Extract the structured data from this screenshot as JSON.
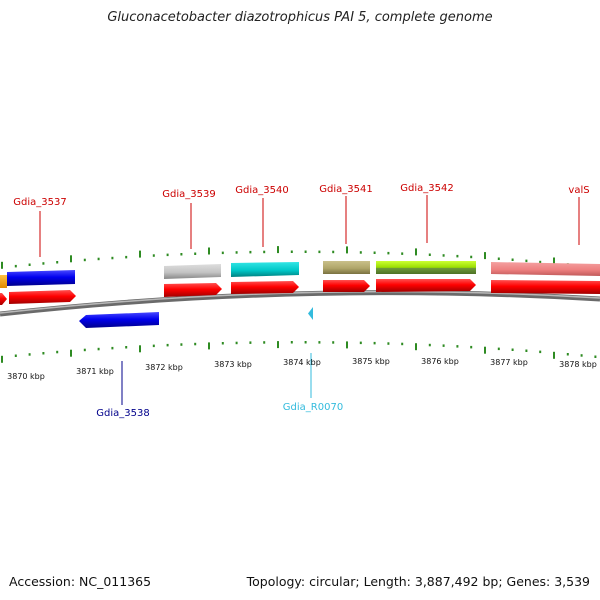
{
  "title": "Gluconacetobacter diazotrophicus PAI 5, complete genome",
  "footer": {
    "accession": "Accession: NC_011365",
    "summary": "Topology: circular; Length: 3,887,492 bp; Genes: 3,539"
  },
  "scale": {
    "ticks": [
      "3870 kbp",
      "3871 kbp",
      "3872 kbp",
      "3873 kbp",
      "3874 kbp",
      "3875 kbp",
      "3876 kbp",
      "3877 kbp",
      "3878 kbp"
    ]
  },
  "features": [
    {
      "label": "Gdia_3537",
      "color": "#cc0000"
    },
    {
      "label": "Gdia_3538",
      "color": "#00008b"
    },
    {
      "label": "Gdia_3539",
      "color": "#cc0000"
    },
    {
      "label": "Gdia_3540",
      "color": "#cc0000"
    },
    {
      "label": "Gdia_R0070",
      "color": "#33bbdd"
    },
    {
      "label": "Gdia_3541",
      "color": "#cc0000"
    },
    {
      "label": "Gdia_3542",
      "color": "#cc0000"
    },
    {
      "label": "valS",
      "color": "#cc0000"
    }
  ],
  "legend_colors": {
    "cds_forward": "#ff0000",
    "cds_reverse": "#0000ee",
    "trna": "#33bbdd",
    "backbone": "#888888",
    "tick": "#2e8b22"
  }
}
